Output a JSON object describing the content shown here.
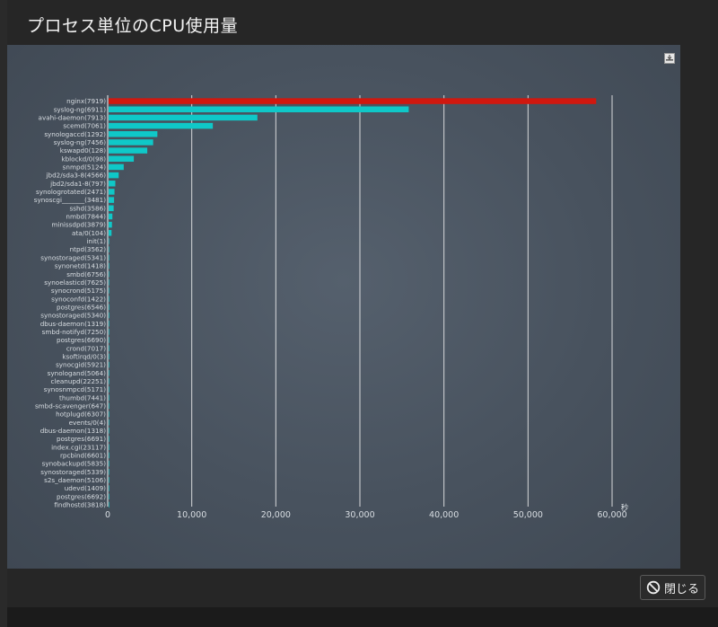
{
  "window": {
    "title": "プロセス単位のCPU使用量",
    "close_label": "閉じる"
  },
  "colors": {
    "highlight_bar": "#d0180f",
    "bar": "#0fc8c8",
    "panel": "#4a545f",
    "axis_text": "#d8dde2"
  },
  "icons": {
    "export": "download-icon",
    "close": "prohibited-icon"
  },
  "chart_data": {
    "type": "bar",
    "orientation": "horizontal",
    "title": "",
    "xlabel": "秒",
    "ylabel": "",
    "xlim": [
      0,
      60000
    ],
    "xticks": [
      "0",
      "10,000",
      "20,000",
      "30,000",
      "40,000",
      "50,000",
      "60,000"
    ],
    "grid": true,
    "legend": "none",
    "categories": [
      "nginx(7919)",
      "syslog-ng(6911)",
      "avahi-daemon(7913)",
      "scemd(7061)",
      "synologaccd(1292)",
      "syslog-ng(7456)",
      "kswapd0(128)",
      "kblockd/0(98)",
      "snmpd(5124)",
      "jbd2/sda3-8(4566)",
      "jbd2/sda1-8(797)",
      "synologrotated(2471)",
      "synoscgi_______(3481)",
      "sshd(3586)",
      "nmbd(7844)",
      "minissdpd(3879)",
      "ata/0(104)",
      "init(1)",
      "ntpd(3562)",
      "synostoraged(5341)",
      "synonetd(1418)",
      "smbd(6756)",
      "synoelasticd(7625)",
      "synocrond(5175)",
      "synoconfd(1422)",
      "postgres(6546)",
      "synostoraged(5340)",
      "dbus-daemon(1319)",
      "smbd-notifyd(7250)",
      "postgres(6690)",
      "crond(7017)",
      "ksoftirqd/0(3)",
      "synocgid(5921)",
      "synologand(5064)",
      "cleanupd(22251)",
      "synosnmpcd(5171)",
      "thumbd(7441)",
      "smbd-scavenger(647)",
      "hotplugd(6307)",
      "events/0(4)",
      "dbus-daemon(1318)",
      "postgres(6691)",
      "index.cgi(23117)",
      "rpcbind(6601)",
      "synobackupd(5835)",
      "synostoraged(5339)",
      "s2s_daemon(5106)",
      "udevd(1409)",
      "postgres(6692)",
      "findhostd(3818)"
    ],
    "values": [
      58000,
      35700,
      17700,
      12400,
      5800,
      5300,
      4600,
      3000,
      1800,
      1200,
      800,
      700,
      650,
      600,
      450,
      400,
      350,
      30,
      20,
      20,
      15,
      15,
      12,
      12,
      10,
      10,
      10,
      10,
      10,
      10,
      8,
      8,
      8,
      8,
      8,
      6,
      6,
      6,
      6,
      5,
      5,
      5,
      5,
      5,
      4,
      4,
      4,
      4,
      4,
      3
    ],
    "highlight_index": 0
  }
}
